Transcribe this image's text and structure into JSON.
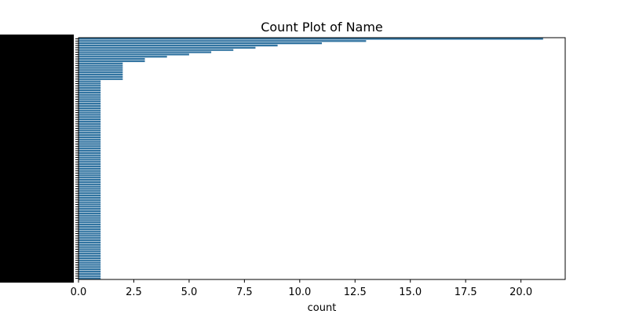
{
  "chart_data": {
    "type": "bar",
    "orientation": "horizontal",
    "title": "Count Plot of Name",
    "xlabel": "count",
    "ylabel": "",
    "xlim": [
      0,
      22
    ],
    "xticks": [
      0,
      2.5,
      5,
      7.5,
      10,
      12.5,
      15,
      17.5,
      20
    ],
    "xtick_labels": [
      "0.0",
      "2.5",
      "5.0",
      "7.5",
      "10.0",
      "12.5",
      "15.0",
      "17.5",
      "20.0"
    ],
    "bar_color": "#3274a1",
    "grid": false,
    "legend": "none",
    "values": [
      21,
      13,
      11,
      9,
      8,
      7,
      6,
      5,
      4,
      3,
      3,
      2,
      2,
      2,
      2,
      2,
      2,
      2,
      2,
      1,
      1,
      1,
      1,
      1,
      1,
      1,
      1,
      1,
      1,
      1,
      1,
      1,
      1,
      1,
      1,
      1,
      1,
      1,
      1,
      1,
      1,
      1,
      1,
      1,
      1,
      1,
      1,
      1,
      1,
      1,
      1,
      1,
      1,
      1,
      1,
      1,
      1,
      1,
      1,
      1,
      1,
      1,
      1,
      1,
      1,
      1,
      1,
      1,
      1,
      1,
      1,
      1,
      1,
      1,
      1,
      1,
      1,
      1,
      1,
      1,
      1,
      1,
      1,
      1,
      1,
      1,
      1,
      1,
      1,
      1,
      1,
      1,
      1,
      1,
      1,
      1,
      1,
      1,
      1,
      1,
      1,
      1,
      1,
      1,
      1,
      1,
      1,
      1
    ]
  }
}
